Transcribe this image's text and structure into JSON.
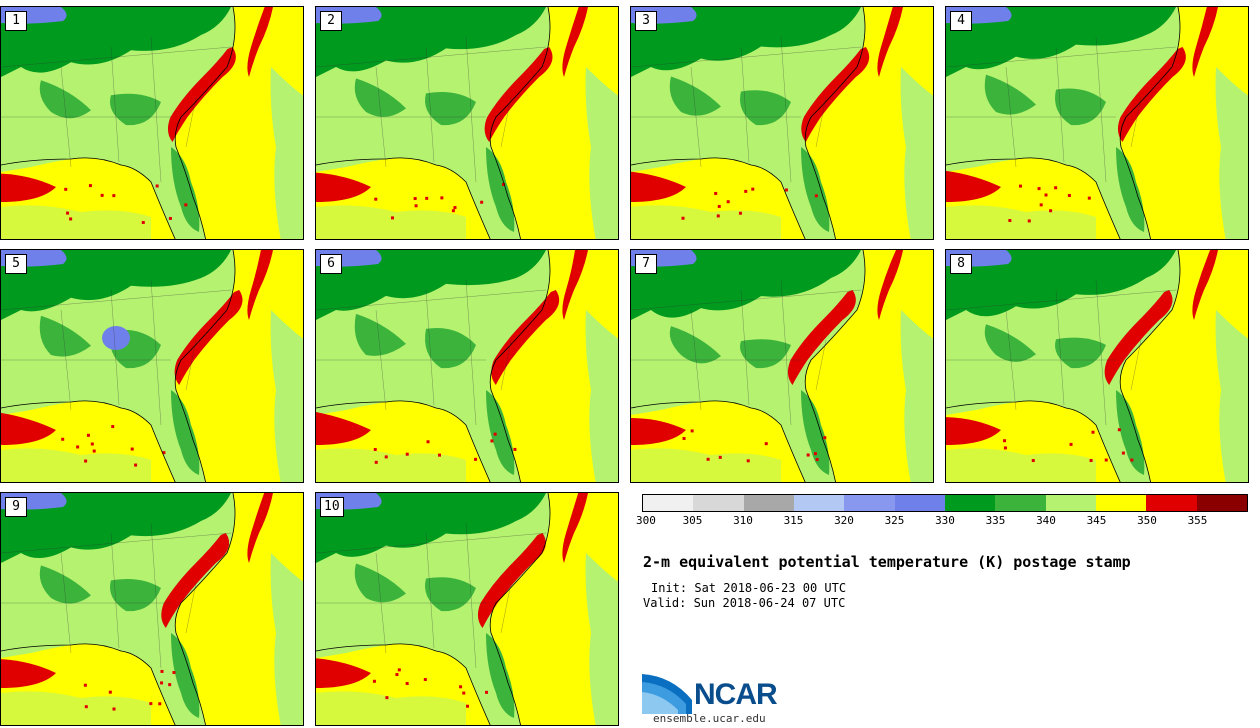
{
  "panels": [
    {
      "label": "1"
    },
    {
      "label": "2"
    },
    {
      "label": "3"
    },
    {
      "label": "4"
    },
    {
      "label": "5"
    },
    {
      "label": "6"
    },
    {
      "label": "7"
    },
    {
      "label": "8"
    },
    {
      "label": "9"
    },
    {
      "label": "10"
    }
  ],
  "colorbar": {
    "ticks": [
      "300",
      "305",
      "310",
      "315",
      "320",
      "325",
      "330",
      "335",
      "340",
      "345",
      "350",
      "355"
    ],
    "colors": [
      "#f0f0f0",
      "#d8d8d8",
      "#a8a8a8",
      "#b4c8f4",
      "#8898ee",
      "#7080ea",
      "#009a1e",
      "#3cb43c",
      "#b4f270",
      "#ffff00",
      "#e00000",
      "#8a0000"
    ]
  },
  "title": "2-m equivalent potential temperature (K) postage stamp",
  "init": "Init: Sat 2018-06-23 00 UTC",
  "valid": "Valid: Sun 2018-06-24 07 UTC",
  "logo": {
    "text": "NCAR",
    "site": "ensemble.ucar.edu"
  }
}
